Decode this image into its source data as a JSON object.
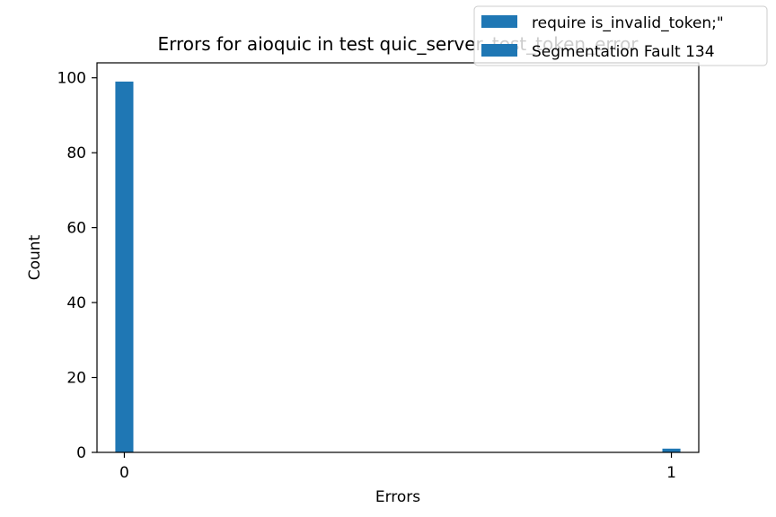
{
  "chart_data": {
    "type": "bar",
    "title": "Errors for aioquic in test quic_server_test_token_error",
    "xlabel": "Errors",
    "ylabel": "Count",
    "xlim": [
      -0.05,
      1.05
    ],
    "ylim": [
      0,
      104
    ],
    "xticks": [
      0,
      1
    ],
    "yticks": [
      0,
      20,
      40,
      60,
      80,
      100
    ],
    "bar_width": 0.033,
    "grid": false,
    "legend_position": "top-right",
    "color": "#1f77b4",
    "series": [
      {
        "name": "require is_invalid_token;\"",
        "points": [
          {
            "x": 0,
            "y": 99
          },
          {
            "x": 1,
            "y": 1
          }
        ]
      },
      {
        "name": "Segmentation Fault 134",
        "points": [
          {
            "x": 0,
            "y": 0
          },
          {
            "x": 1,
            "y": 0
          }
        ]
      }
    ]
  }
}
